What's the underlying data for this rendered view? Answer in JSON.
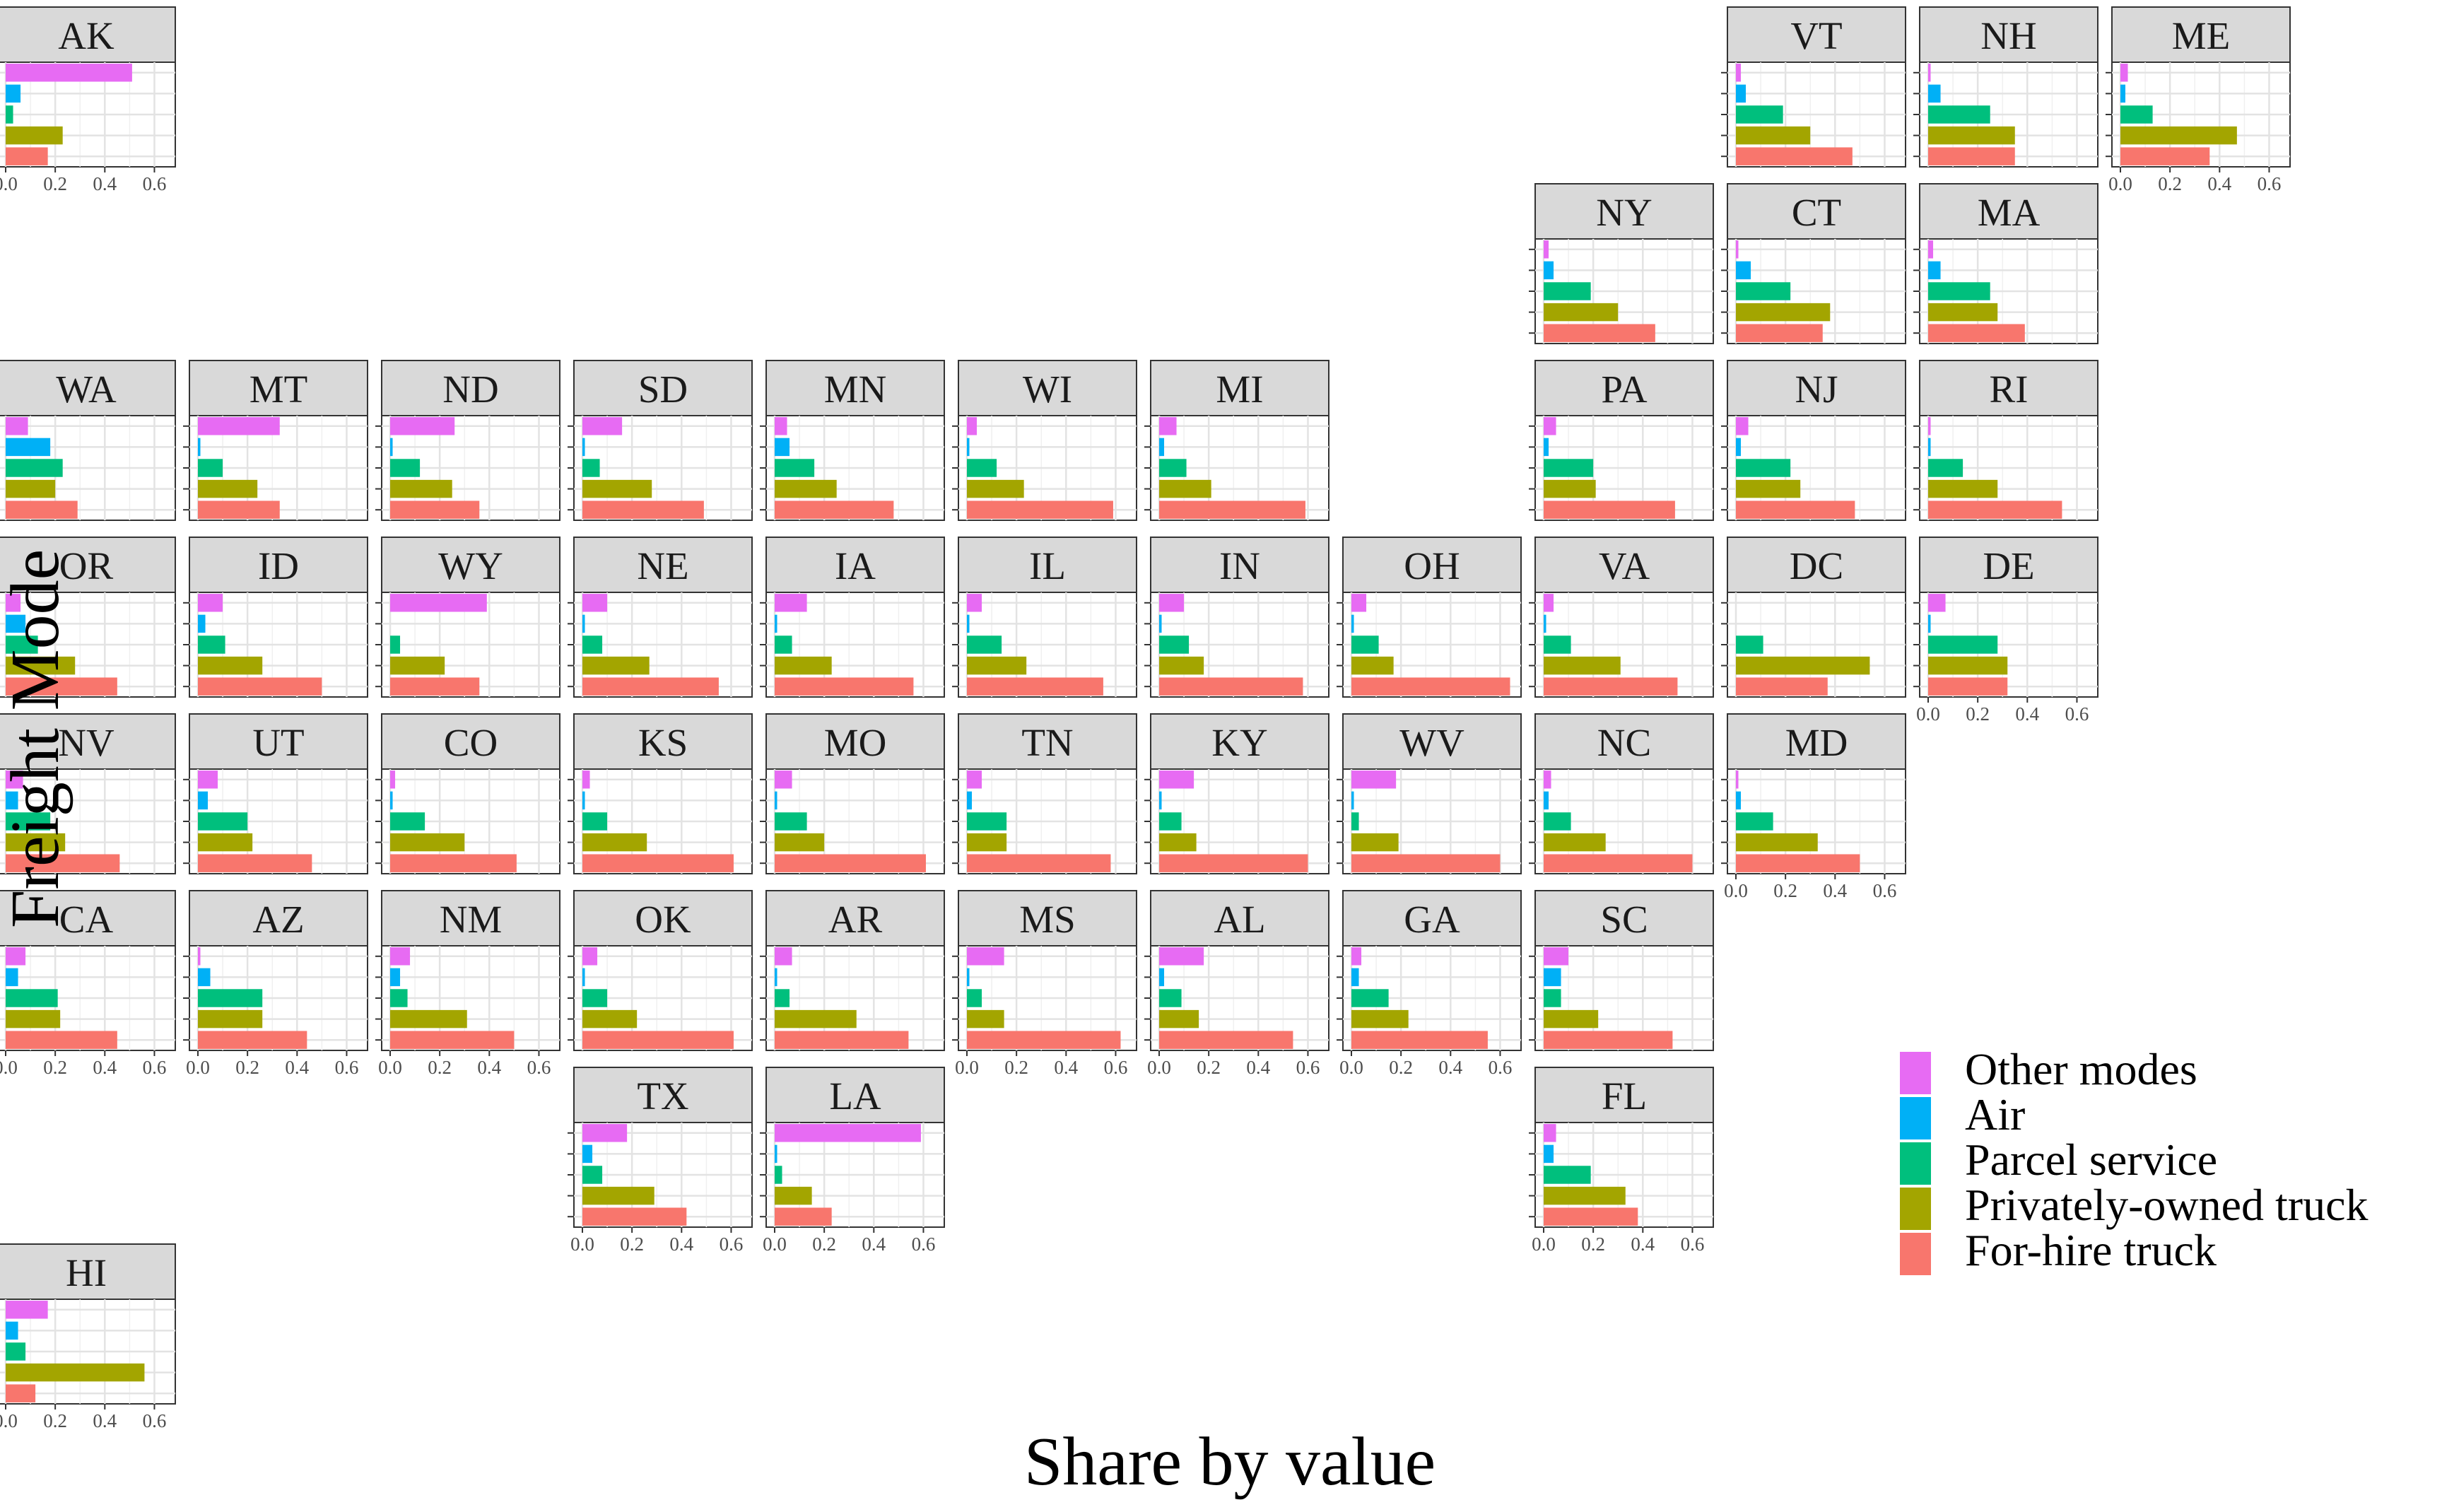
{
  "chart_data": {
    "type": "bar",
    "layout": "geofacet small multiples (horizontal bars)",
    "xlabel": "Share by value",
    "ylabel": "Freight Mode",
    "xlim": [
      0,
      0.65
    ],
    "x_ticks": [
      0.0,
      0.2,
      0.4,
      0.6
    ],
    "x_tick_labels": [
      "0.0",
      "0.2",
      "0.4",
      "0.6"
    ],
    "grid": true,
    "legend_position": "right",
    "categories": [
      "Other modes",
      "Air",
      "Parcel service",
      "Privately-owned truck",
      "For-hire truck"
    ],
    "colors": {
      "Other modes": "#e76bf3",
      "Air": "#00b0f6",
      "Parcel service": "#00bf7d",
      "Privately-owned truck": "#a3a500",
      "For-hire truck": "#f8766d"
    },
    "facets": [
      {
        "state": "AK",
        "values": [
          0.51,
          0.06,
          0.03,
          0.23,
          0.17
        ]
      },
      {
        "state": "VT",
        "values": [
          0.02,
          0.04,
          0.19,
          0.3,
          0.47
        ]
      },
      {
        "state": "NH",
        "values": [
          0.01,
          0.05,
          0.25,
          0.35,
          0.35
        ]
      },
      {
        "state": "ME",
        "values": [
          0.03,
          0.02,
          0.13,
          0.47,
          0.36
        ]
      },
      {
        "state": "NY",
        "values": [
          0.02,
          0.04,
          0.19,
          0.3,
          0.45
        ]
      },
      {
        "state": "CT",
        "values": [
          0.01,
          0.06,
          0.22,
          0.38,
          0.35
        ]
      },
      {
        "state": "MA",
        "values": [
          0.02,
          0.05,
          0.25,
          0.28,
          0.39
        ]
      },
      {
        "state": "WA",
        "values": [
          0.09,
          0.18,
          0.23,
          0.2,
          0.29
        ]
      },
      {
        "state": "MT",
        "values": [
          0.33,
          0.01,
          0.1,
          0.24,
          0.33
        ]
      },
      {
        "state": "ND",
        "values": [
          0.26,
          0.01,
          0.12,
          0.25,
          0.36
        ]
      },
      {
        "state": "SD",
        "values": [
          0.16,
          0.01,
          0.07,
          0.28,
          0.49
        ]
      },
      {
        "state": "MN",
        "values": [
          0.05,
          0.06,
          0.16,
          0.25,
          0.48
        ]
      },
      {
        "state": "WI",
        "values": [
          0.04,
          0.01,
          0.12,
          0.23,
          0.59
        ]
      },
      {
        "state": "MI",
        "values": [
          0.07,
          0.02,
          0.11,
          0.21,
          0.59
        ]
      },
      {
        "state": "PA",
        "values": [
          0.05,
          0.02,
          0.2,
          0.21,
          0.53
        ]
      },
      {
        "state": "NJ",
        "values": [
          0.05,
          0.02,
          0.22,
          0.26,
          0.48
        ]
      },
      {
        "state": "RI",
        "values": [
          0.01,
          0.01,
          0.14,
          0.28,
          0.54
        ]
      },
      {
        "state": "OR",
        "values": [
          0.06,
          0.08,
          0.13,
          0.28,
          0.45
        ]
      },
      {
        "state": "ID",
        "values": [
          0.1,
          0.03,
          0.11,
          0.26,
          0.5
        ]
      },
      {
        "state": "WY",
        "values": [
          0.39,
          0.0,
          0.04,
          0.22,
          0.36
        ]
      },
      {
        "state": "NE",
        "values": [
          0.1,
          0.01,
          0.08,
          0.27,
          0.55
        ]
      },
      {
        "state": "IA",
        "values": [
          0.13,
          0.01,
          0.07,
          0.23,
          0.56
        ]
      },
      {
        "state": "IL",
        "values": [
          0.06,
          0.01,
          0.14,
          0.24,
          0.55
        ]
      },
      {
        "state": "IN",
        "values": [
          0.1,
          0.01,
          0.12,
          0.18,
          0.58
        ]
      },
      {
        "state": "OH",
        "values": [
          0.06,
          0.01,
          0.11,
          0.17,
          0.64
        ]
      },
      {
        "state": "VA",
        "values": [
          0.04,
          0.01,
          0.11,
          0.31,
          0.54
        ]
      },
      {
        "state": "DC",
        "values": [
          0.0,
          0.0,
          0.11,
          0.54,
          0.37
        ]
      },
      {
        "state": "DE",
        "values": [
          0.07,
          0.01,
          0.28,
          0.32,
          0.32
        ]
      },
      {
        "state": "NV",
        "values": [
          0.07,
          0.05,
          0.18,
          0.24,
          0.46
        ]
      },
      {
        "state": "UT",
        "values": [
          0.08,
          0.04,
          0.2,
          0.22,
          0.46
        ]
      },
      {
        "state": "CO",
        "values": [
          0.02,
          0.01,
          0.14,
          0.3,
          0.51
        ]
      },
      {
        "state": "KS",
        "values": [
          0.03,
          0.01,
          0.1,
          0.26,
          0.61
        ]
      },
      {
        "state": "MO",
        "values": [
          0.07,
          0.01,
          0.13,
          0.2,
          0.61
        ]
      },
      {
        "state": "TN",
        "values": [
          0.06,
          0.02,
          0.16,
          0.16,
          0.58
        ]
      },
      {
        "state": "KY",
        "values": [
          0.14,
          0.01,
          0.09,
          0.15,
          0.6
        ]
      },
      {
        "state": "WV",
        "values": [
          0.18,
          0.01,
          0.03,
          0.19,
          0.6
        ]
      },
      {
        "state": "NC",
        "values": [
          0.03,
          0.02,
          0.11,
          0.25,
          0.6
        ]
      },
      {
        "state": "MD",
        "values": [
          0.01,
          0.02,
          0.15,
          0.33,
          0.5
        ]
      },
      {
        "state": "CA",
        "values": [
          0.08,
          0.05,
          0.21,
          0.22,
          0.45
        ]
      },
      {
        "state": "AZ",
        "values": [
          0.01,
          0.05,
          0.26,
          0.26,
          0.44
        ]
      },
      {
        "state": "NM",
        "values": [
          0.08,
          0.04,
          0.07,
          0.31,
          0.5
        ]
      },
      {
        "state": "OK",
        "values": [
          0.06,
          0.01,
          0.1,
          0.22,
          0.61
        ]
      },
      {
        "state": "AR",
        "values": [
          0.07,
          0.01,
          0.06,
          0.33,
          0.54
        ]
      },
      {
        "state": "MS",
        "values": [
          0.15,
          0.01,
          0.06,
          0.15,
          0.62
        ]
      },
      {
        "state": "AL",
        "values": [
          0.18,
          0.02,
          0.09,
          0.16,
          0.54
        ]
      },
      {
        "state": "GA",
        "values": [
          0.04,
          0.03,
          0.15,
          0.23,
          0.55
        ]
      },
      {
        "state": "SC",
        "values": [
          0.1,
          0.07,
          0.07,
          0.22,
          0.52
        ]
      },
      {
        "state": "TX",
        "values": [
          0.18,
          0.04,
          0.08,
          0.29,
          0.42
        ]
      },
      {
        "state": "LA",
        "values": [
          0.59,
          0.01,
          0.03,
          0.15,
          0.23
        ]
      },
      {
        "state": "FL",
        "values": [
          0.05,
          0.04,
          0.19,
          0.33,
          0.38
        ]
      },
      {
        "state": "HI",
        "values": [
          0.17,
          0.05,
          0.08,
          0.56,
          0.12
        ]
      }
    ]
  }
}
